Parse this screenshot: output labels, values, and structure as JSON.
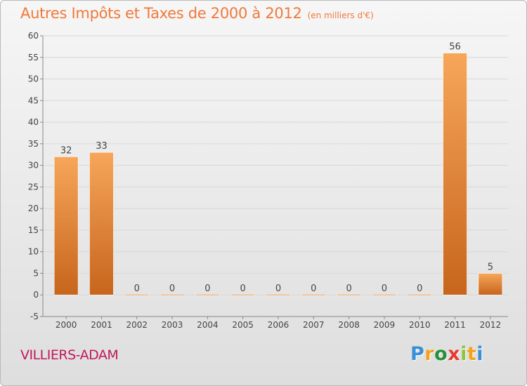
{
  "title": "Autres Impôts et Taxes de 2000 à 2012",
  "subtitle": "(en milliers d'€)",
  "commune": "VILLIERS-ADAM",
  "logo": {
    "letters": [
      "P",
      "r",
      "o",
      "x",
      "i",
      "t",
      "i"
    ],
    "colors": [
      "#3a8fd6",
      "#f4a21d",
      "#2a8f3b",
      "#e63b2e",
      "#8cc63f",
      "#f4a21d",
      "#3a8fd6"
    ]
  },
  "colors": {
    "bar_light": "#f6a65a",
    "bar_dark": "#c7651c",
    "axis": "#888888",
    "grid": "#d8d8d8",
    "text": "#444444"
  },
  "chart_data": {
    "type": "bar",
    "categories": [
      "2000",
      "2001",
      "2002",
      "2003",
      "2004",
      "2005",
      "2006",
      "2007",
      "2008",
      "2009",
      "2010",
      "2011",
      "2012"
    ],
    "values": [
      32,
      33,
      0,
      0,
      0,
      0,
      0,
      0,
      0,
      0,
      0,
      56,
      5
    ],
    "data_labels": [
      "32",
      "33",
      "0",
      "0",
      "0",
      "0",
      "0",
      "0",
      "0",
      "0",
      "0",
      "56",
      "5"
    ],
    "yticks": [
      -5,
      0,
      5,
      10,
      15,
      20,
      25,
      30,
      35,
      40,
      45,
      50,
      55,
      60
    ],
    "ylim": [
      -5,
      60
    ],
    "grid": true,
    "title": "Autres Impôts et Taxes de 2000 à 2012",
    "xlabel": "",
    "ylabel": ""
  }
}
